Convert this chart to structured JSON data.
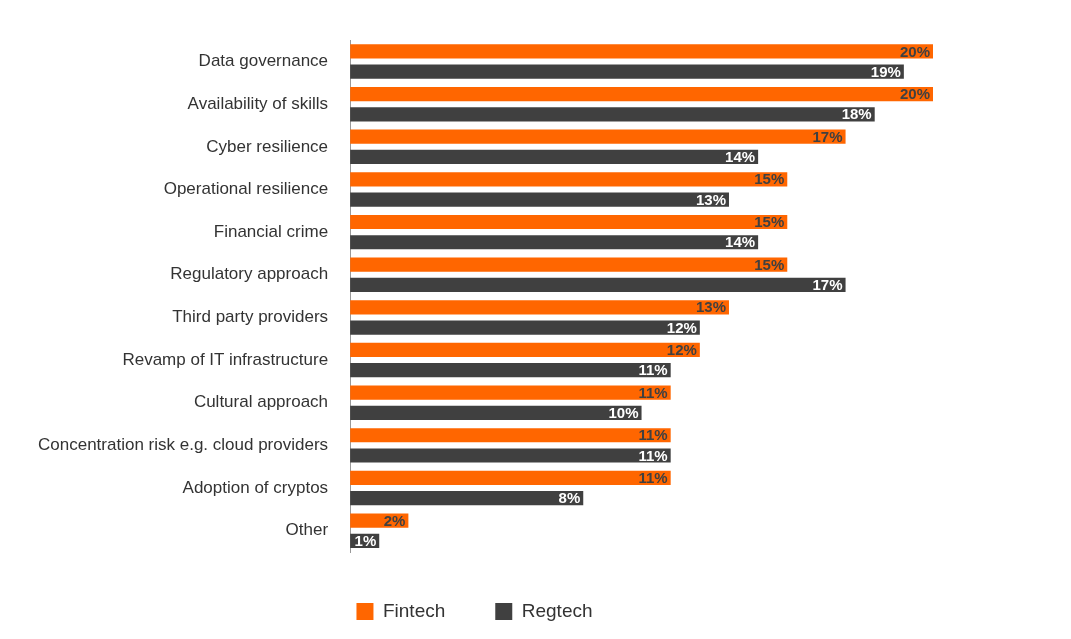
{
  "chart_data": {
    "type": "bar",
    "orientation": "horizontal",
    "categories": [
      "Data governance",
      "Availability of skills",
      "Cyber resilience",
      "Operational resilience",
      "Financial crime",
      "Regulatory approach",
      "Third party providers",
      "Revamp of IT infrastructure",
      "Cultural approach",
      "Concentration risk e.g. cloud providers",
      "Adoption of cryptos",
      "Other"
    ],
    "series": [
      {
        "name": "Fintech",
        "color": "#ff6600",
        "values": [
          20,
          20,
          17,
          15,
          15,
          15,
          13,
          12,
          11,
          11,
          11,
          2
        ],
        "value_labels": [
          "20%",
          "20%",
          "17%",
          "15%",
          "15%",
          "15%",
          "13%",
          "12%",
          "11%",
          "11%",
          "11%",
          "2%"
        ]
      },
      {
        "name": "Regtech",
        "color": "#404040",
        "values": [
          19,
          18,
          14,
          13,
          14,
          17,
          12,
          11,
          10,
          11,
          8,
          1
        ],
        "value_labels": [
          "19%",
          "18%",
          "14%",
          "13%",
          "14%",
          "17%",
          "12%",
          "11%",
          "10%",
          "11%",
          "8%",
          "1%"
        ]
      }
    ],
    "tick_labels": "y",
    "grid": false,
    "legend": "bottom"
  }
}
